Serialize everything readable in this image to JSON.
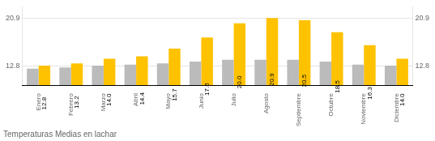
{
  "chart_data": {
    "type": "bar",
    "title": "Temperaturas Medias en lachar",
    "categories": [
      "Enero",
      "Febrero",
      "Marzo",
      "Abril",
      "Mayo",
      "Junio",
      "Julio",
      "Agosto",
      "Septiembre",
      "Octubre",
      "Noviembre",
      "Diciembre"
    ],
    "series": [
      {
        "color": "#BBBBBB",
        "values": [
          12.3,
          12.5,
          12.8,
          13.0,
          13.2,
          13.5,
          13.8,
          13.8,
          13.8,
          13.5,
          13.0,
          12.8
        ]
      },
      {
        "color": "#FFC200",
        "values": [
          12.8,
          13.2,
          14.0,
          14.4,
          15.7,
          17.6,
          20.0,
          20.9,
          20.5,
          18.5,
          16.3,
          14.0
        ],
        "data_labels": true,
        "value_labels": [
          "12.8",
          "13.2",
          "14.0",
          "14.4",
          "15.7",
          "17.6",
          "20.0",
          "20.9",
          "20.5",
          "18.5",
          "16.3",
          "14.0"
        ]
      }
    ],
    "ylim": [
      9.5,
      22.8
    ],
    "yticks": [
      12.8,
      20.9
    ],
    "y2lim": [
      9.5,
      22.8
    ],
    "y2ticks": [
      12.8,
      20.9
    ],
    "grid": true
  }
}
